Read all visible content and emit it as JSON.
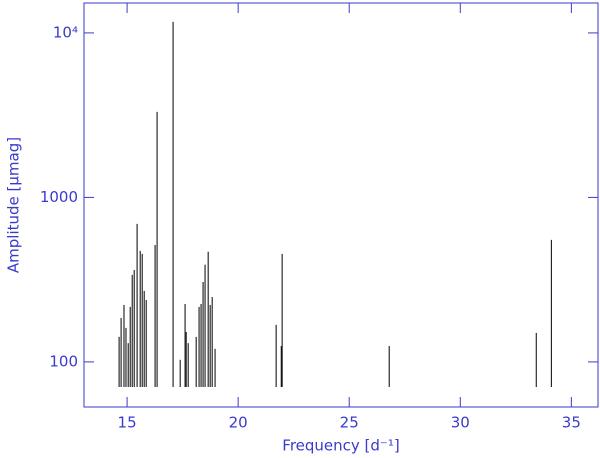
{
  "chart_data": {
    "type": "stem",
    "x_label": "Frequency [d⁻¹]",
    "y_label": "Amplitude [μmag]",
    "x": [
      14.64,
      14.73,
      14.86,
      14.95,
      15.05,
      15.14,
      15.23,
      15.32,
      15.45,
      15.59,
      15.68,
      15.77,
      15.86,
      16.26,
      16.35,
      17.07,
      17.39,
      17.61,
      17.66,
      17.75,
      18.11,
      18.24,
      18.33,
      18.42,
      18.51,
      18.65,
      18.74,
      18.83,
      18.96,
      21.71,
      21.94,
      21.98,
      26.8,
      33.42,
      34.1
    ],
    "values": [
      142,
      185,
      222,
      161,
      130,
      216,
      338,
      362,
      690,
      473,
      454,
      270,
      238,
      514,
      3310,
      11670,
      103,
      225,
      152,
      130,
      142,
      216,
      225,
      306,
      390,
      467,
      222,
      248,
      120,
      168,
      125,
      454,
      125,
      150,
      552
    ],
    "color": "#000000",
    "axis_color": "#3a3acc",
    "xlim": [
      13.06,
      36.2
    ],
    "ylim": [
      53.2,
      15200
    ],
    "y_log": true,
    "xticks": [
      15,
      20,
      25,
      30,
      35
    ],
    "yticks": [
      100,
      1000,
      {
        "value": 10000,
        "label": "10⁴"
      }
    ]
  }
}
